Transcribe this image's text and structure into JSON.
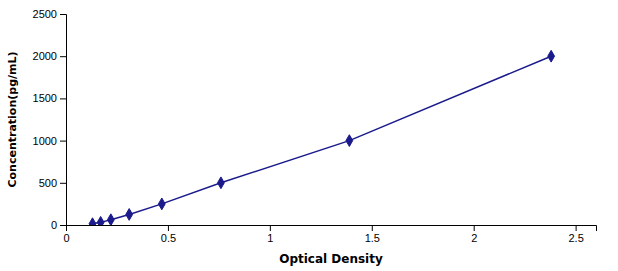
{
  "chart_data": {
    "type": "line",
    "x": [
      0.13,
      0.17,
      0.22,
      0.31,
      0.47,
      0.76,
      1.39,
      2.38
    ],
    "values": [
      15.6,
      31.25,
      62.5,
      125,
      250,
      500,
      1000,
      2000
    ],
    "color": "#1a1a8c",
    "marker": "diamond",
    "xlabel": "Optical Density",
    "ylabel": "Concentration(pg/mL)",
    "xlim": [
      0.0,
      2.6
    ],
    "ylim": [
      0,
      2500
    ],
    "xticks": [
      0,
      0.5,
      1,
      1.5,
      2,
      2.5
    ],
    "yticks": [
      0,
      500,
      1000,
      1500,
      2000,
      2500
    ],
    "grid": false
  }
}
